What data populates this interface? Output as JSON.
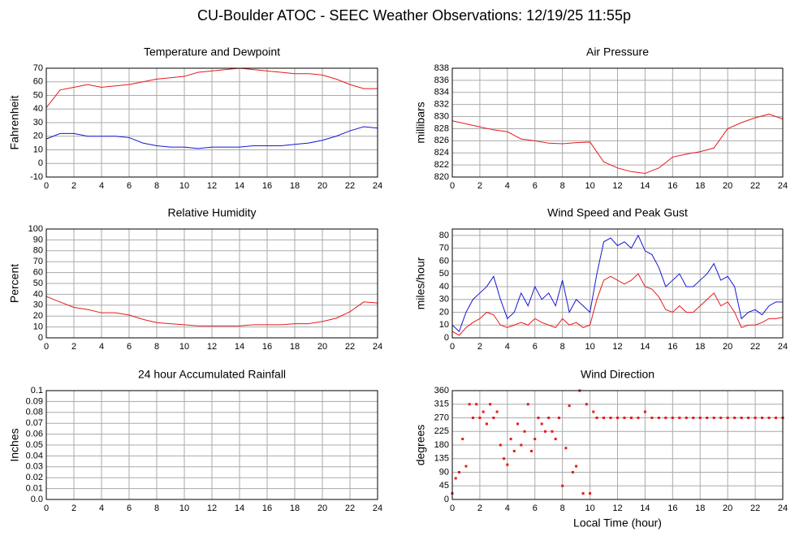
{
  "title": "CU-Boulder ATOC - SEEC Weather Observations: 12/19/25 11:55p",
  "chart_data": [
    {
      "type": "line",
      "title": "Temperature and Dewpoint",
      "ylabel": "Fahrenheit",
      "x": [
        0,
        1,
        2,
        3,
        4,
        5,
        6,
        7,
        8,
        9,
        10,
        11,
        12,
        13,
        14,
        15,
        16,
        17,
        18,
        19,
        20,
        21,
        22,
        23,
        24
      ],
      "series": [
        {
          "color": "#e8191c",
          "values": [
            41,
            54,
            56,
            58,
            56,
            57,
            58,
            60,
            62,
            63,
            64,
            67,
            68,
            69,
            70,
            69,
            68,
            67,
            66,
            66,
            65,
            62,
            58,
            55,
            55
          ]
        },
        {
          "color": "#1616d6",
          "values": [
            18,
            22,
            22,
            20,
            20,
            20,
            19,
            15,
            13,
            12,
            12,
            11,
            12,
            12,
            12,
            13,
            13,
            13,
            14,
            15,
            17,
            20,
            24,
            27,
            26
          ]
        }
      ],
      "xlim": [
        0,
        24
      ],
      "xticks": [
        0,
        2,
        4,
        6,
        8,
        10,
        12,
        14,
        16,
        18,
        20,
        22,
        24
      ],
      "ylim": [
        -10,
        70
      ],
      "yticks": [
        -10,
        0,
        10,
        20,
        30,
        40,
        50,
        60,
        70
      ],
      "grid": true
    },
    {
      "type": "line",
      "title": "Air Pressure",
      "ylabel": "millibars",
      "x": [
        0,
        1,
        2,
        3,
        4,
        5,
        6,
        7,
        8,
        9,
        10,
        11,
        12,
        13,
        14,
        15,
        16,
        17,
        18,
        19,
        20,
        21,
        22,
        23,
        24
      ],
      "series": [
        {
          "color": "#e8191c",
          "values": [
            829.3,
            828.8,
            828.3,
            827.8,
            827.5,
            826.3,
            826,
            825.6,
            825.5,
            825.7,
            825.8,
            822.5,
            821.5,
            820.9,
            820.6,
            821.5,
            823.3,
            823.8,
            824.2,
            824.8,
            828,
            829,
            829.8,
            830.4,
            829.6
          ]
        }
      ],
      "xlim": [
        0,
        24
      ],
      "xticks": [
        0,
        2,
        4,
        6,
        8,
        10,
        12,
        14,
        16,
        18,
        20,
        22,
        24
      ],
      "ylim": [
        820,
        838
      ],
      "yticks": [
        820,
        822,
        824,
        826,
        828,
        830,
        832,
        834,
        836,
        838
      ],
      "grid": true
    },
    {
      "type": "line",
      "title": "Relative Humidity",
      "ylabel": "Percent",
      "x": [
        0,
        1,
        2,
        3,
        4,
        5,
        6,
        7,
        8,
        9,
        10,
        11,
        12,
        13,
        14,
        15,
        16,
        17,
        18,
        19,
        20,
        21,
        22,
        23,
        24
      ],
      "series": [
        {
          "color": "#e8191c",
          "values": [
            38,
            33,
            28,
            26,
            23,
            23,
            21,
            17,
            14,
            13,
            12,
            11,
            11,
            11,
            11,
            12,
            12,
            12,
            13,
            13,
            15,
            18,
            24,
            33,
            32
          ]
        }
      ],
      "xlim": [
        0,
        24
      ],
      "xticks": [
        0,
        2,
        4,
        6,
        8,
        10,
        12,
        14,
        16,
        18,
        20,
        22,
        24
      ],
      "ylim": [
        0,
        100
      ],
      "yticks": [
        0,
        10,
        20,
        30,
        40,
        50,
        60,
        70,
        80,
        90,
        100
      ],
      "grid": true
    },
    {
      "type": "line",
      "title": "Wind Speed and Peak Gust",
      "ylabel": "miles/hour",
      "x": [
        0,
        0.5,
        1,
        1.5,
        2,
        2.5,
        3,
        3.5,
        4,
        4.5,
        5,
        5.5,
        6,
        6.5,
        7,
        7.5,
        8,
        8.5,
        9,
        9.5,
        10,
        10.5,
        11,
        11.5,
        12,
        12.5,
        13,
        13.5,
        14,
        14.5,
        15,
        15.5,
        16,
        16.5,
        17,
        17.5,
        18,
        18.5,
        19,
        19.5,
        20,
        20.5,
        21,
        21.5,
        22,
        22.5,
        23,
        23.5,
        24
      ],
      "series": [
        {
          "color": "#1616d6",
          "values": [
            10,
            5,
            20,
            30,
            35,
            40,
            48,
            30,
            15,
            20,
            35,
            25,
            40,
            30,
            35,
            25,
            45,
            20,
            30,
            25,
            20,
            50,
            75,
            78,
            72,
            75,
            70,
            80,
            68,
            65,
            55,
            40,
            45,
            50,
            40,
            40,
            45,
            50,
            58,
            45,
            48,
            40,
            15,
            20,
            22,
            18,
            25,
            28,
            28
          ]
        },
        {
          "color": "#e8191c",
          "values": [
            5,
            2,
            8,
            12,
            15,
            20,
            18,
            10,
            8,
            10,
            12,
            10,
            15,
            12,
            10,
            8,
            15,
            10,
            12,
            8,
            10,
            30,
            45,
            48,
            45,
            42,
            45,
            50,
            40,
            38,
            32,
            22,
            20,
            25,
            20,
            20,
            25,
            30,
            35,
            25,
            28,
            20,
            8,
            10,
            10,
            12,
            15,
            15,
            16
          ]
        }
      ],
      "xlim": [
        0,
        24
      ],
      "xticks": [
        0,
        2,
        4,
        6,
        8,
        10,
        12,
        14,
        16,
        18,
        20,
        22,
        24
      ],
      "ylim": [
        0,
        85
      ],
      "yticks": [
        0,
        10,
        20,
        30,
        40,
        50,
        60,
        70,
        80
      ],
      "grid": true
    },
    {
      "type": "line",
      "title": "24 hour Accumulated Rainfall",
      "ylabel": "Inches",
      "x": [
        0,
        24
      ],
      "series": [
        {
          "color": "#e8191c",
          "values": [
            0,
            0
          ]
        }
      ],
      "xlim": [
        0,
        24
      ],
      "xticks": [
        0,
        2,
        4,
        6,
        8,
        10,
        12,
        14,
        16,
        18,
        20,
        22,
        24
      ],
      "ylim": [
        0,
        0.1
      ],
      "yticks": [
        {
          "value": 0,
          "label": "0.0"
        },
        0.01,
        0.02,
        0.03,
        0.04,
        0.05,
        0.06,
        0.07,
        0.08,
        0.09,
        0.1
      ],
      "grid": true
    },
    {
      "type": "scatter",
      "title": "Wind Direction",
      "ylabel": "degrees",
      "xlabel": "Local Time (hour)",
      "x": [
        0,
        0.25,
        0.5,
        0.75,
        1,
        1.25,
        1.5,
        1.75,
        2,
        2.25,
        2.5,
        2.75,
        3,
        3.25,
        3.5,
        3.75,
        4,
        4.25,
        4.5,
        4.75,
        5,
        5.25,
        5.5,
        5.75,
        6,
        6.25,
        6.5,
        6.75,
        7,
        7.25,
        7.5,
        7.75,
        8,
        8.25,
        8.5,
        8.75,
        9,
        9.25,
        9.5,
        9.75,
        10,
        10.25,
        10.5,
        11,
        11.5,
        12,
        12.5,
        13,
        13.5,
        14,
        14.5,
        15,
        15.5,
        16,
        16.5,
        17,
        17.5,
        18,
        18.5,
        19,
        19.5,
        20,
        20.5,
        21,
        21.5,
        22,
        22.5,
        23,
        23.5,
        24
      ],
      "series": [
        {
          "color": "#e8191c",
          "values": [
            20,
            70,
            90,
            200,
            110,
            315,
            270,
            315,
            270,
            290,
            250,
            315,
            270,
            290,
            180,
            135,
            115,
            200,
            160,
            250,
            180,
            225,
            315,
            160,
            200,
            270,
            250,
            225,
            270,
            225,
            200,
            270,
            45,
            170,
            310,
            90,
            110,
            360,
            20,
            315,
            20,
            290,
            270,
            270,
            270,
            270,
            270,
            270,
            270,
            290,
            270,
            270,
            270,
            270,
            270,
            270,
            270,
            270,
            270,
            270,
            270,
            270,
            270,
            270,
            270,
            270,
            270,
            270,
            270,
            270
          ]
        }
      ],
      "xlim": [
        0,
        24
      ],
      "xticks": [
        0,
        2,
        4,
        6,
        8,
        10,
        12,
        14,
        16,
        18,
        20,
        22,
        24
      ],
      "ylim": [
        0,
        360
      ],
      "yticks": [
        0,
        45,
        90,
        135,
        180,
        225,
        270,
        315,
        360
      ],
      "grid": true
    }
  ]
}
